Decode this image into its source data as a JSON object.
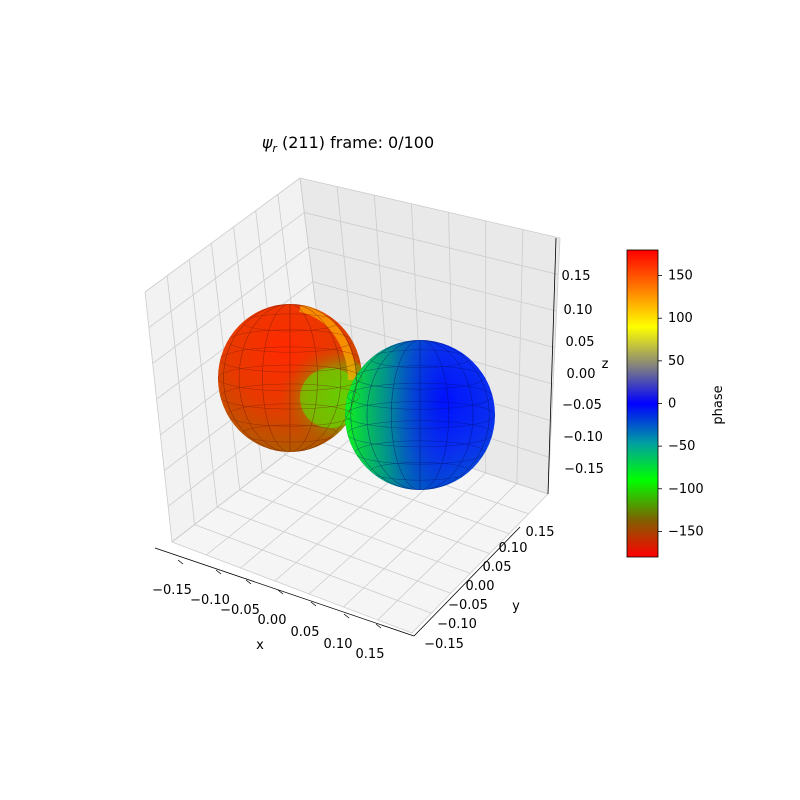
{
  "chart_data": {
    "type": "surface3d",
    "title_main": "ψ",
    "title_sub": "r",
    "title_rest": " (211) frame: 0/100",
    "xlabel": "x",
    "ylabel": "y",
    "zlabel": "z",
    "xlim": [
      -0.19,
      0.19
    ],
    "ylim": [
      -0.19,
      0.19
    ],
    "zlim": [
      -0.19,
      0.19
    ],
    "x_ticks": [
      "−0.15",
      "−0.10",
      "−0.05",
      "0.00",
      "0.05",
      "0.10",
      "0.15"
    ],
    "y_ticks": [
      "−0.15",
      "−0.10",
      "−0.05",
      "0.00",
      "0.05",
      "0.10",
      "0.15"
    ],
    "z_ticks": [
      "−0.15",
      "−0.10",
      "−0.05",
      "0.00",
      "0.05",
      "0.10",
      "0.15"
    ],
    "grid": true,
    "surface": {
      "description_of_lobes": [
        {
          "center": [
            -0.09,
            0.0,
            0.0
          ],
          "radius": 0.09,
          "phase_range": [
            -180,
            180
          ],
          "dominant_phase": 170
        },
        {
          "center": [
            0.09,
            0.0,
            0.0
          ],
          "radius": 0.09,
          "phase_range": [
            -180,
            180
          ],
          "dominant_phase": 0
        }
      ]
    },
    "colorbar": {
      "label": "phase",
      "range": [
        -180,
        180
      ],
      "ticks": [
        "−150",
        "−100",
        "−50",
        "0",
        "50",
        "100",
        "150"
      ],
      "tick_values": [
        -150,
        -100,
        -50,
        0,
        50,
        100,
        150
      ],
      "colors": [
        "#ff0000",
        "#806000",
        "#00ff00",
        "#00a0a0",
        "#0000ff",
        "#808080",
        "#ffff00",
        "#ff8000",
        "#ff0000"
      ]
    }
  }
}
